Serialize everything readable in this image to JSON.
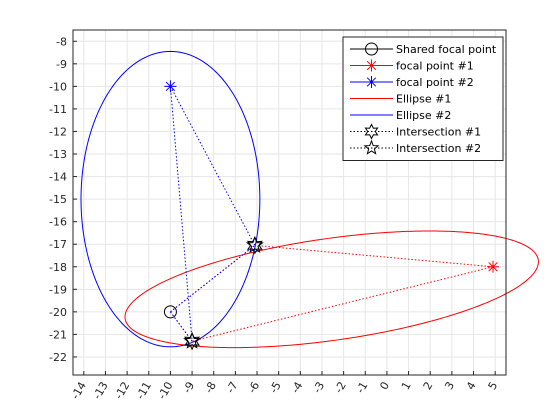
{
  "chart_data": {
    "type": "line",
    "title": "",
    "xlabel": "",
    "ylabel": "",
    "xlim": [
      -14.5,
      5.5
    ],
    "ylim": [
      -22.8,
      -7.5
    ],
    "grid": true,
    "legend_position": "top-right",
    "x_ticks": [
      -14,
      -13,
      -12,
      -11,
      -10,
      -9,
      -8,
      -7,
      -6,
      -5,
      -4,
      -3,
      -2,
      -1,
      0,
      1,
      2,
      3,
      4,
      5
    ],
    "y_ticks": [
      -8,
      -9,
      -10,
      -11,
      -12,
      -13,
      -14,
      -15,
      -16,
      -17,
      -18,
      -19,
      -20,
      -21,
      -22
    ],
    "x_tick_labels": [
      "-14",
      "-13",
      "-12",
      "-11",
      "-10",
      "-9",
      "-8",
      "-7",
      "-6",
      "-5",
      "-4",
      "-3",
      "-2",
      "-1",
      "0",
      "1",
      "2",
      "3",
      "4",
      "5"
    ],
    "y_tick_labels": [
      "-8",
      "-9",
      "-10",
      "-11",
      "-12",
      "-13",
      "-14",
      "-15",
      "-16",
      "-17",
      "-18",
      "-19",
      "-20",
      "-21",
      "-22"
    ],
    "shared_focal_point": {
      "x": -10,
      "y": -20
    },
    "focal_point_1": {
      "x": 4.9,
      "y": -18
    },
    "focal_point_2": {
      "x": -10,
      "y": -10
    },
    "ellipse_1": {
      "center": [
        -2.55,
        -19
      ],
      "semi_major": 9.63,
      "semi_minor": 2.26,
      "angle_deg": 7.72
    },
    "ellipse_2": {
      "center": [
        -10,
        -15
      ],
      "semi_major": 6.55,
      "semi_minor": 4.13,
      "angle_deg": 90
    },
    "intersection_1": {
      "x": -6.1,
      "y": -17.05
    },
    "intersection_2": {
      "x": -9.0,
      "y": -21.3
    },
    "colors": {
      "ellipse_1": "#ff0000",
      "ellipse_2": "#0000ff",
      "shared": "#000000",
      "grid": "#e6e6e6",
      "axis": "#262626"
    },
    "legend": [
      {
        "label": "Shared focal point",
        "marker": "circle",
        "line": "solid",
        "color": "#000000"
      },
      {
        "label": "focal point #1",
        "marker": "asterisk",
        "line": "solid",
        "color": "#ff0000"
      },
      {
        "label": "focal point #2",
        "marker": "asterisk",
        "line": "solid",
        "color": "#0000ff"
      },
      {
        "label": "Ellipse #1",
        "marker": "none",
        "line": "solid",
        "color": "#ff0000"
      },
      {
        "label": "Ellipse #2",
        "marker": "none",
        "line": "solid",
        "color": "#0000ff"
      },
      {
        "label": "Intersection #1",
        "marker": "hexagram",
        "line": "dotted",
        "color": "#000000"
      },
      {
        "label": "Intersection #2",
        "marker": "pentagram",
        "line": "dotted",
        "color": "#000000"
      }
    ]
  }
}
